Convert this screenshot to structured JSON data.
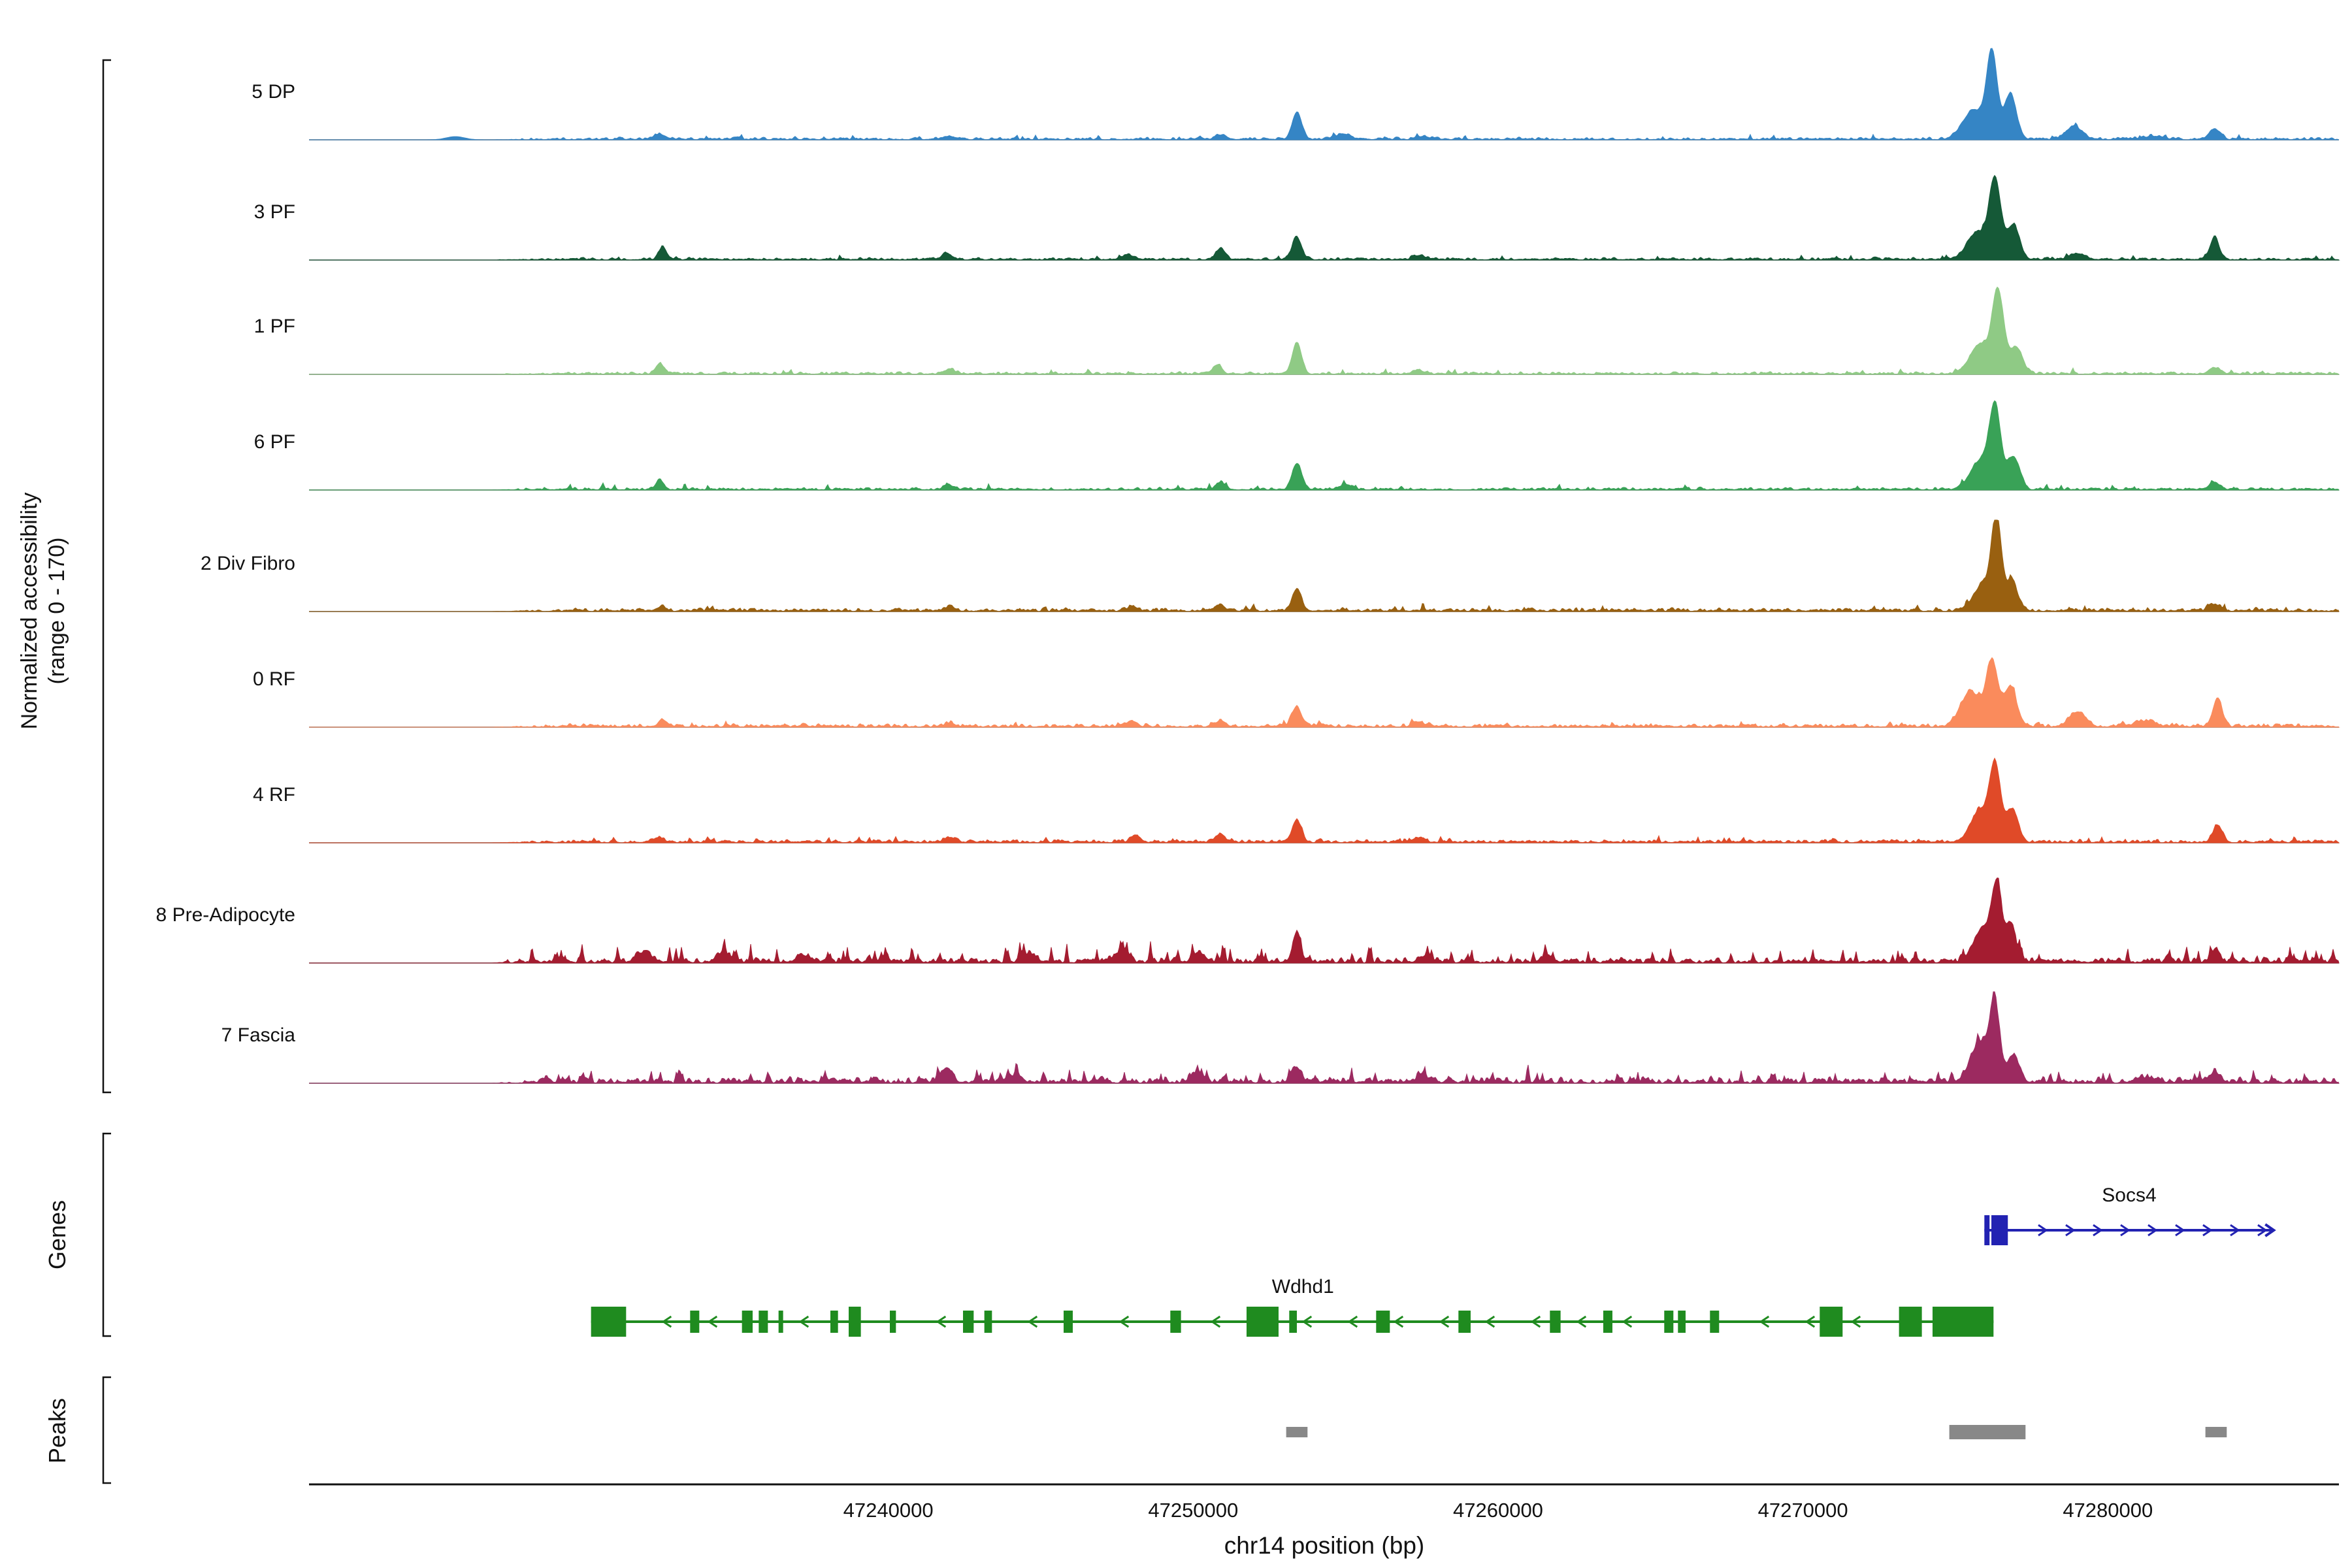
{
  "sections": {
    "genes_label": "Genes",
    "peaks_label": "Peaks"
  },
  "chart_data": {
    "type": "area",
    "xlabel": "chr14 position (bp)",
    "ylabel_lines": [
      "Normalized accessibility",
      "(range 0 - 170)"
    ],
    "x_axis": {
      "tick_values": [
        47240000,
        47250000,
        47260000,
        47270000,
        47280000
      ],
      "tick_labels": [
        "47240000",
        "47250000",
        "47260000",
        "47270000",
        "47280000"
      ],
      "xlim": [
        47221000,
        47287600
      ]
    },
    "y_per_track_range": [
      0,
      170
    ],
    "tracks": [
      {
        "label": "5 DP",
        "color": "#3585c5",
        "peaks": [
          [
            47225800,
            6,
            300
          ],
          [
            47232500,
            10,
            200
          ],
          [
            47242000,
            6,
            200
          ],
          [
            47250900,
            9,
            160
          ],
          [
            47253400,
            52,
            150
          ],
          [
            47254900,
            10,
            200
          ],
          [
            47257500,
            6,
            200
          ],
          [
            47275600,
            55,
            350
          ],
          [
            47276200,
            158,
            170
          ],
          [
            47276800,
            85,
            200
          ],
          [
            47278900,
            24,
            260
          ],
          [
            47281500,
            6,
            300
          ],
          [
            47283500,
            20,
            180
          ]
        ],
        "noise": {
          "amp": 6,
          "spike_prob": 0.02,
          "spike_amp": 14,
          "seed": 1007
        }
      },
      {
        "label": "3 PF",
        "color": "#155937",
        "peaks": [
          [
            47232600,
            24,
            120
          ],
          [
            47241900,
            12,
            150
          ],
          [
            47247900,
            8,
            180
          ],
          [
            47250900,
            22,
            140
          ],
          [
            47253400,
            42,
            150
          ],
          [
            47257400,
            8,
            180
          ],
          [
            47275700,
            50,
            320
          ],
          [
            47276300,
            148,
            190
          ],
          [
            47276900,
            65,
            200
          ],
          [
            47279000,
            10,
            250
          ],
          [
            47283500,
            42,
            150
          ]
        ],
        "noise": {
          "amp": 6,
          "spike_prob": 0.02,
          "spike_amp": 14,
          "seed": 2007
        }
      },
      {
        "label": "1 PF",
        "color": "#8fca85",
        "peaks": [
          [
            47232500,
            20,
            130
          ],
          [
            47242000,
            9,
            150
          ],
          [
            47250800,
            18,
            140
          ],
          [
            47253400,
            58,
            150
          ],
          [
            47257400,
            7,
            180
          ],
          [
            47275800,
            55,
            320
          ],
          [
            47276400,
            150,
            190
          ],
          [
            47277000,
            50,
            200
          ],
          [
            47283500,
            12,
            180
          ]
        ],
        "noise": {
          "amp": 6,
          "spike_prob": 0.02,
          "spike_amp": 14,
          "seed": 3007
        }
      },
      {
        "label": "6 PF",
        "color": "#39a257",
        "peaks": [
          [
            47232500,
            18,
            130
          ],
          [
            47242000,
            8,
            150
          ],
          [
            47250900,
            14,
            140
          ],
          [
            47253400,
            50,
            150
          ],
          [
            47255000,
            10,
            180
          ],
          [
            47275800,
            52,
            320
          ],
          [
            47276300,
            148,
            185
          ],
          [
            47276900,
            62,
            200
          ],
          [
            47283500,
            14,
            170
          ]
        ],
        "noise": {
          "amp": 6,
          "spike_prob": 0.02,
          "spike_amp": 14,
          "seed": 4007
        }
      },
      {
        "label": "2 Div Fibro",
        "color": "#996010",
        "peaks": [
          [
            47232500,
            7,
            150
          ],
          [
            47242000,
            6,
            160
          ],
          [
            47248000,
            8,
            160
          ],
          [
            47250900,
            10,
            140
          ],
          [
            47253400,
            42,
            150
          ],
          [
            47275900,
            50,
            300
          ],
          [
            47276350,
            165,
            160
          ],
          [
            47276850,
            55,
            190
          ],
          [
            47283500,
            13,
            170
          ]
        ],
        "noise": {
          "amp": 8,
          "spike_prob": 0.03,
          "spike_amp": 14,
          "seed": 5007
        }
      },
      {
        "label": "0 RF",
        "color": "#fa8b5c",
        "peaks": [
          [
            47232600,
            13,
            140
          ],
          [
            47242000,
            6,
            160
          ],
          [
            47248000,
            10,
            160
          ],
          [
            47250900,
            11,
            140
          ],
          [
            47253400,
            38,
            150
          ],
          [
            47257400,
            8,
            180
          ],
          [
            47275500,
            65,
            320
          ],
          [
            47276200,
            118,
            190
          ],
          [
            47276800,
            75,
            210
          ],
          [
            47279000,
            28,
            260
          ],
          [
            47281200,
            10,
            300
          ],
          [
            47283600,
            52,
            150
          ]
        ],
        "noise": {
          "amp": 8,
          "spike_prob": 0.03,
          "spike_amp": 14,
          "seed": 6007
        }
      },
      {
        "label": "4 RF",
        "color": "#e04a28",
        "peaks": [
          [
            47232500,
            7,
            150
          ],
          [
            47242000,
            8,
            160
          ],
          [
            47248100,
            13,
            150
          ],
          [
            47250900,
            16,
            140
          ],
          [
            47253400,
            42,
            150
          ],
          [
            47257400,
            9,
            180
          ],
          [
            47275800,
            58,
            300
          ],
          [
            47276300,
            138,
            175
          ],
          [
            47276850,
            62,
            200
          ],
          [
            47283600,
            33,
            150
          ]
        ],
        "noise": {
          "amp": 8,
          "spike_prob": 0.03,
          "spike_amp": 14,
          "seed": 7007
        }
      },
      {
        "label": "8 Pre-Adipocyte",
        "color": "#a41c30",
        "peaks": [
          [
            47232000,
            16,
            250
          ],
          [
            47234600,
            18,
            200
          ],
          [
            47237200,
            14,
            200
          ],
          [
            47244600,
            16,
            200
          ],
          [
            47247600,
            20,
            200
          ],
          [
            47250200,
            18,
            180
          ],
          [
            47253400,
            52,
            130
          ],
          [
            47257600,
            12,
            180
          ],
          [
            47261600,
            12,
            180
          ],
          [
            47275900,
            65,
            280
          ],
          [
            47276350,
            128,
            150
          ],
          [
            47276800,
            75,
            170
          ],
          [
            47283500,
            16,
            160
          ]
        ],
        "noise": {
          "amp": 13,
          "spike_prob": 0.08,
          "spike_amp": 40,
          "seed": 8007,
          "zones": [
            [
              47226000,
              47252000,
              1.5
            ]
          ]
        }
      },
      {
        "label": "7 Fascia",
        "color": "#9c2a60",
        "peaks": [
          [
            47241900,
            28,
            160
          ],
          [
            47244000,
            10,
            200
          ],
          [
            47250100,
            14,
            180
          ],
          [
            47253400,
            28,
            150
          ],
          [
            47257500,
            10,
            180
          ],
          [
            47275800,
            75,
            300
          ],
          [
            47276300,
            138,
            160
          ],
          [
            47276900,
            50,
            190
          ],
          [
            47281300,
            8,
            300
          ],
          [
            47283500,
            18,
            170
          ]
        ],
        "noise": {
          "amp": 14,
          "spike_prob": 0.07,
          "spike_amp": 30,
          "seed": 9007,
          "zones": [
            [
              47227000,
              47262000,
              1.3
            ]
          ]
        }
      }
    ],
    "genes": [
      {
        "name": "Socs4",
        "color": "#2222b2",
        "strand": "+",
        "start": 47275950,
        "end": 47285400,
        "label_bp": 47280700,
        "exons": [
          [
            47275950,
            47276120,
            1
          ],
          [
            47276180,
            47276720,
            1
          ]
        ]
      },
      {
        "name": "Wdhd1",
        "color": "#1f8b1f",
        "strand": "-",
        "start": 47230250,
        "end": 47276250,
        "label_bp": 47253600,
        "exons": [
          [
            47230250,
            47231400,
            1
          ],
          [
            47233500,
            47233800,
            0
          ],
          [
            47235200,
            47235550,
            0
          ],
          [
            47235750,
            47236050,
            0
          ],
          [
            47236400,
            47236550,
            0
          ],
          [
            47238100,
            47238350,
            0
          ],
          [
            47238700,
            47239100,
            1
          ],
          [
            47240050,
            47240250,
            0
          ],
          [
            47242450,
            47242800,
            0
          ],
          [
            47243150,
            47243400,
            0
          ],
          [
            47245750,
            47246050,
            0
          ],
          [
            47249250,
            47249600,
            0
          ],
          [
            47251750,
            47252800,
            1
          ],
          [
            47253150,
            47253400,
            0
          ],
          [
            47256000,
            47256450,
            0
          ],
          [
            47258700,
            47259100,
            0
          ],
          [
            47261700,
            47262050,
            0
          ],
          [
            47263450,
            47263750,
            0
          ],
          [
            47265450,
            47265750,
            0
          ],
          [
            47265900,
            47266150,
            0
          ],
          [
            47266950,
            47267250,
            0
          ],
          [
            47270550,
            47271300,
            1
          ],
          [
            47273150,
            47273900,
            1
          ],
          [
            47274250,
            47276250,
            1
          ]
        ]
      }
    ],
    "peaks_track": {
      "color": "#888888",
      "intervals": [
        [
          47253050,
          47253750
        ],
        [
          47274800,
          47277300
        ],
        [
          47283200,
          47283900
        ]
      ]
    }
  }
}
